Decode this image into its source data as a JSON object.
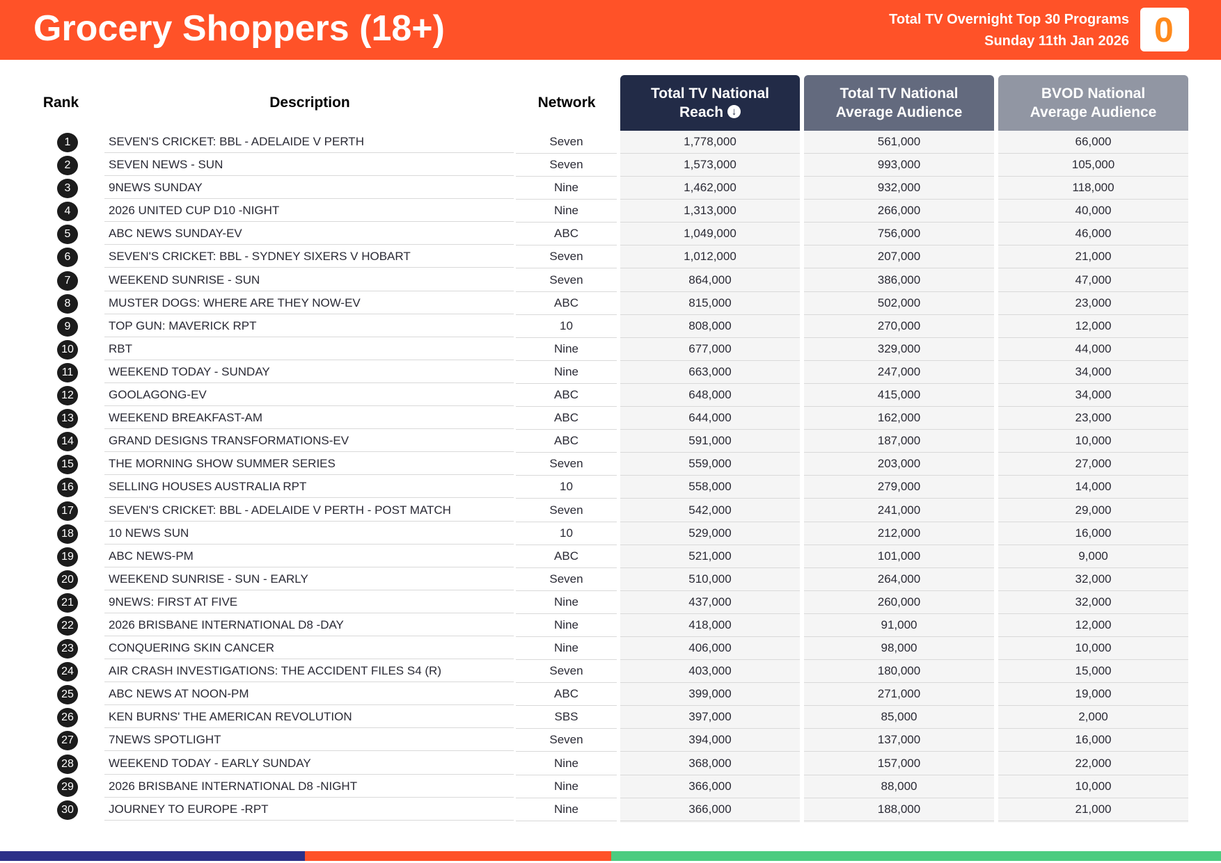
{
  "header": {
    "title": "Grocery Shoppers (18+)",
    "subtitle_line1": "Total TV Overnight Top 30 Programs",
    "subtitle_line2": "Sunday 11th Jan 2026",
    "logo_glyph": "0"
  },
  "columns": {
    "rank": "Rank",
    "description": "Description",
    "network": "Network",
    "reach_line1": "Total TV National",
    "reach_line2": "Reach",
    "avg_line1": "Total TV National",
    "avg_line2": "Average Audience",
    "bvod_line1": "BVOD National",
    "bvod_line2": "Average Audience"
  },
  "colors": {
    "header_bg": "#ff5228",
    "reach_header": "#222b47",
    "avg_header": "#636a7e",
    "bvod_header": "#9196a3",
    "footer": [
      "#2c3088",
      "#ff5228",
      "#4ccc80"
    ]
  },
  "rows": [
    {
      "rank": "1",
      "description": "SEVEN'S CRICKET: BBL - ADELAIDE V PERTH",
      "network": "Seven",
      "reach": "1,778,000",
      "avg": "561,000",
      "bvod": "66,000"
    },
    {
      "rank": "2",
      "description": "SEVEN NEWS - SUN",
      "network": "Seven",
      "reach": "1,573,000",
      "avg": "993,000",
      "bvod": "105,000"
    },
    {
      "rank": "3",
      "description": "9NEWS SUNDAY",
      "network": "Nine",
      "reach": "1,462,000",
      "avg": "932,000",
      "bvod": "118,000"
    },
    {
      "rank": "4",
      "description": "2026 UNITED CUP D10 -NIGHT",
      "network": "Nine",
      "reach": "1,313,000",
      "avg": "266,000",
      "bvod": "40,000"
    },
    {
      "rank": "5",
      "description": "ABC NEWS SUNDAY-EV",
      "network": "ABC",
      "reach": "1,049,000",
      "avg": "756,000",
      "bvod": "46,000"
    },
    {
      "rank": "6",
      "description": "SEVEN'S CRICKET: BBL - SYDNEY SIXERS V HOBART",
      "network": "Seven",
      "reach": "1,012,000",
      "avg": "207,000",
      "bvod": "21,000"
    },
    {
      "rank": "7",
      "description": "WEEKEND SUNRISE - SUN",
      "network": "Seven",
      "reach": "864,000",
      "avg": "386,000",
      "bvod": "47,000"
    },
    {
      "rank": "8",
      "description": "MUSTER DOGS: WHERE ARE THEY NOW-EV",
      "network": "ABC",
      "reach": "815,000",
      "avg": "502,000",
      "bvod": "23,000"
    },
    {
      "rank": "9",
      "description": "TOP GUN: MAVERICK RPT",
      "network": "10",
      "reach": "808,000",
      "avg": "270,000",
      "bvod": "12,000"
    },
    {
      "rank": "10",
      "description": "RBT",
      "network": "Nine",
      "reach": "677,000",
      "avg": "329,000",
      "bvod": "44,000"
    },
    {
      "rank": "11",
      "description": "WEEKEND TODAY - SUNDAY",
      "network": "Nine",
      "reach": "663,000",
      "avg": "247,000",
      "bvod": "34,000"
    },
    {
      "rank": "12",
      "description": "GOOLAGONG-EV",
      "network": "ABC",
      "reach": "648,000",
      "avg": "415,000",
      "bvod": "34,000"
    },
    {
      "rank": "13",
      "description": "WEEKEND BREAKFAST-AM",
      "network": "ABC",
      "reach": "644,000",
      "avg": "162,000",
      "bvod": "23,000"
    },
    {
      "rank": "14",
      "description": "GRAND DESIGNS TRANSFORMATIONS-EV",
      "network": "ABC",
      "reach": "591,000",
      "avg": "187,000",
      "bvod": "10,000"
    },
    {
      "rank": "15",
      "description": "THE MORNING SHOW SUMMER SERIES",
      "network": "Seven",
      "reach": "559,000",
      "avg": "203,000",
      "bvod": "27,000"
    },
    {
      "rank": "16",
      "description": "SELLING HOUSES AUSTRALIA RPT",
      "network": "10",
      "reach": "558,000",
      "avg": "279,000",
      "bvod": "14,000"
    },
    {
      "rank": "17",
      "description": "SEVEN'S CRICKET: BBL - ADELAIDE V PERTH - POST MATCH",
      "network": "Seven",
      "reach": "542,000",
      "avg": "241,000",
      "bvod": "29,000"
    },
    {
      "rank": "18",
      "description": "10 NEWS SUN",
      "network": "10",
      "reach": "529,000",
      "avg": "212,000",
      "bvod": "16,000"
    },
    {
      "rank": "19",
      "description": "ABC NEWS-PM",
      "network": "ABC",
      "reach": "521,000",
      "avg": "101,000",
      "bvod": "9,000"
    },
    {
      "rank": "20",
      "description": "WEEKEND SUNRISE - SUN - EARLY",
      "network": "Seven",
      "reach": "510,000",
      "avg": "264,000",
      "bvod": "32,000"
    },
    {
      "rank": "21",
      "description": "9NEWS: FIRST AT FIVE",
      "network": "Nine",
      "reach": "437,000",
      "avg": "260,000",
      "bvod": "32,000"
    },
    {
      "rank": "22",
      "description": "2026 BRISBANE INTERNATIONAL D8 -DAY",
      "network": "Nine",
      "reach": "418,000",
      "avg": "91,000",
      "bvod": "12,000"
    },
    {
      "rank": "23",
      "description": "CONQUERING SKIN CANCER",
      "network": "Nine",
      "reach": "406,000",
      "avg": "98,000",
      "bvod": "10,000"
    },
    {
      "rank": "24",
      "description": "AIR CRASH INVESTIGATIONS: THE ACCIDENT FILES S4 (R)",
      "network": "Seven",
      "reach": "403,000",
      "avg": "180,000",
      "bvod": "15,000"
    },
    {
      "rank": "25",
      "description": "ABC NEWS AT NOON-PM",
      "network": "ABC",
      "reach": "399,000",
      "avg": "271,000",
      "bvod": "19,000"
    },
    {
      "rank": "26",
      "description": "KEN BURNS' THE AMERICAN REVOLUTION",
      "network": "SBS",
      "reach": "397,000",
      "avg": "85,000",
      "bvod": "2,000"
    },
    {
      "rank": "27",
      "description": "7NEWS SPOTLIGHT",
      "network": "Seven",
      "reach": "394,000",
      "avg": "137,000",
      "bvod": "16,000"
    },
    {
      "rank": "28",
      "description": "WEEKEND TODAY - EARLY SUNDAY",
      "network": "Nine",
      "reach": "368,000",
      "avg": "157,000",
      "bvod": "22,000"
    },
    {
      "rank": "29",
      "description": "2026 BRISBANE INTERNATIONAL D8 -NIGHT",
      "network": "Nine",
      "reach": "366,000",
      "avg": "88,000",
      "bvod": "10,000"
    },
    {
      "rank": "30",
      "description": "JOURNEY TO EUROPE -RPT",
      "network": "Nine",
      "reach": "366,000",
      "avg": "188,000",
      "bvod": "21,000"
    }
  ]
}
